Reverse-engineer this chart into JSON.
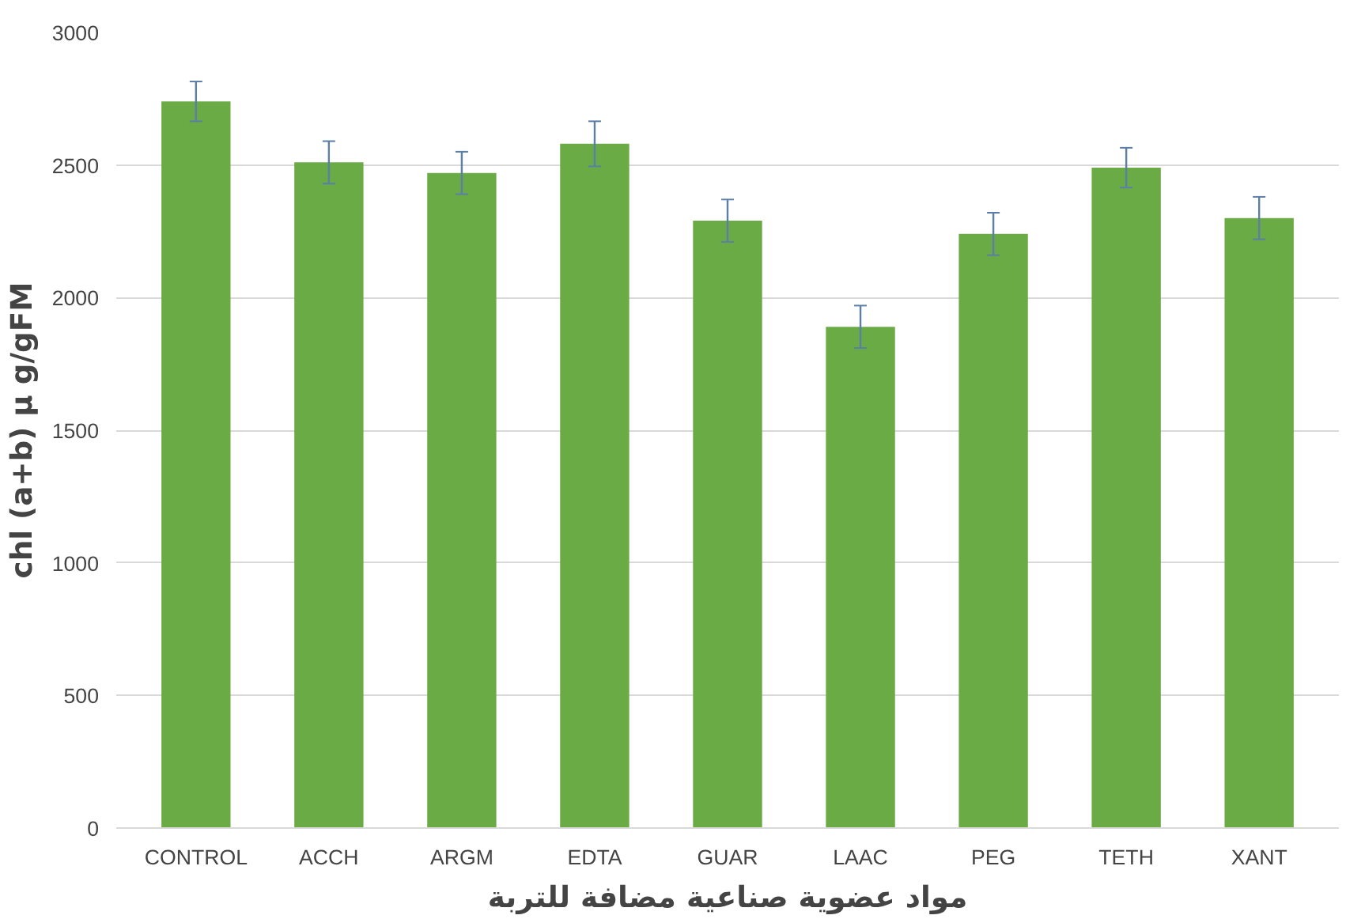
{
  "chart_data": {
    "type": "bar",
    "xlabel": "مواد عضوية صناعية مضافة للتربة",
    "ylabel": "chl (a+b) µ g/gFM",
    "categories": [
      "CONTROL",
      "ACCH",
      "ARGM",
      "EDTA",
      "GUAR",
      "LAAC",
      "PEG",
      "TETH",
      "XANT"
    ],
    "values": [
      2740,
      2510,
      2470,
      2580,
      2290,
      1890,
      2240,
      2490,
      2300
    ],
    "errors": [
      75,
      80,
      80,
      85,
      80,
      80,
      80,
      75,
      80
    ],
    "color": "#6aab45",
    "ylim": [
      0,
      3000
    ],
    "yticks": [
      0,
      500,
      1000,
      1500,
      2000,
      2500,
      3000
    ],
    "grid": "y"
  }
}
